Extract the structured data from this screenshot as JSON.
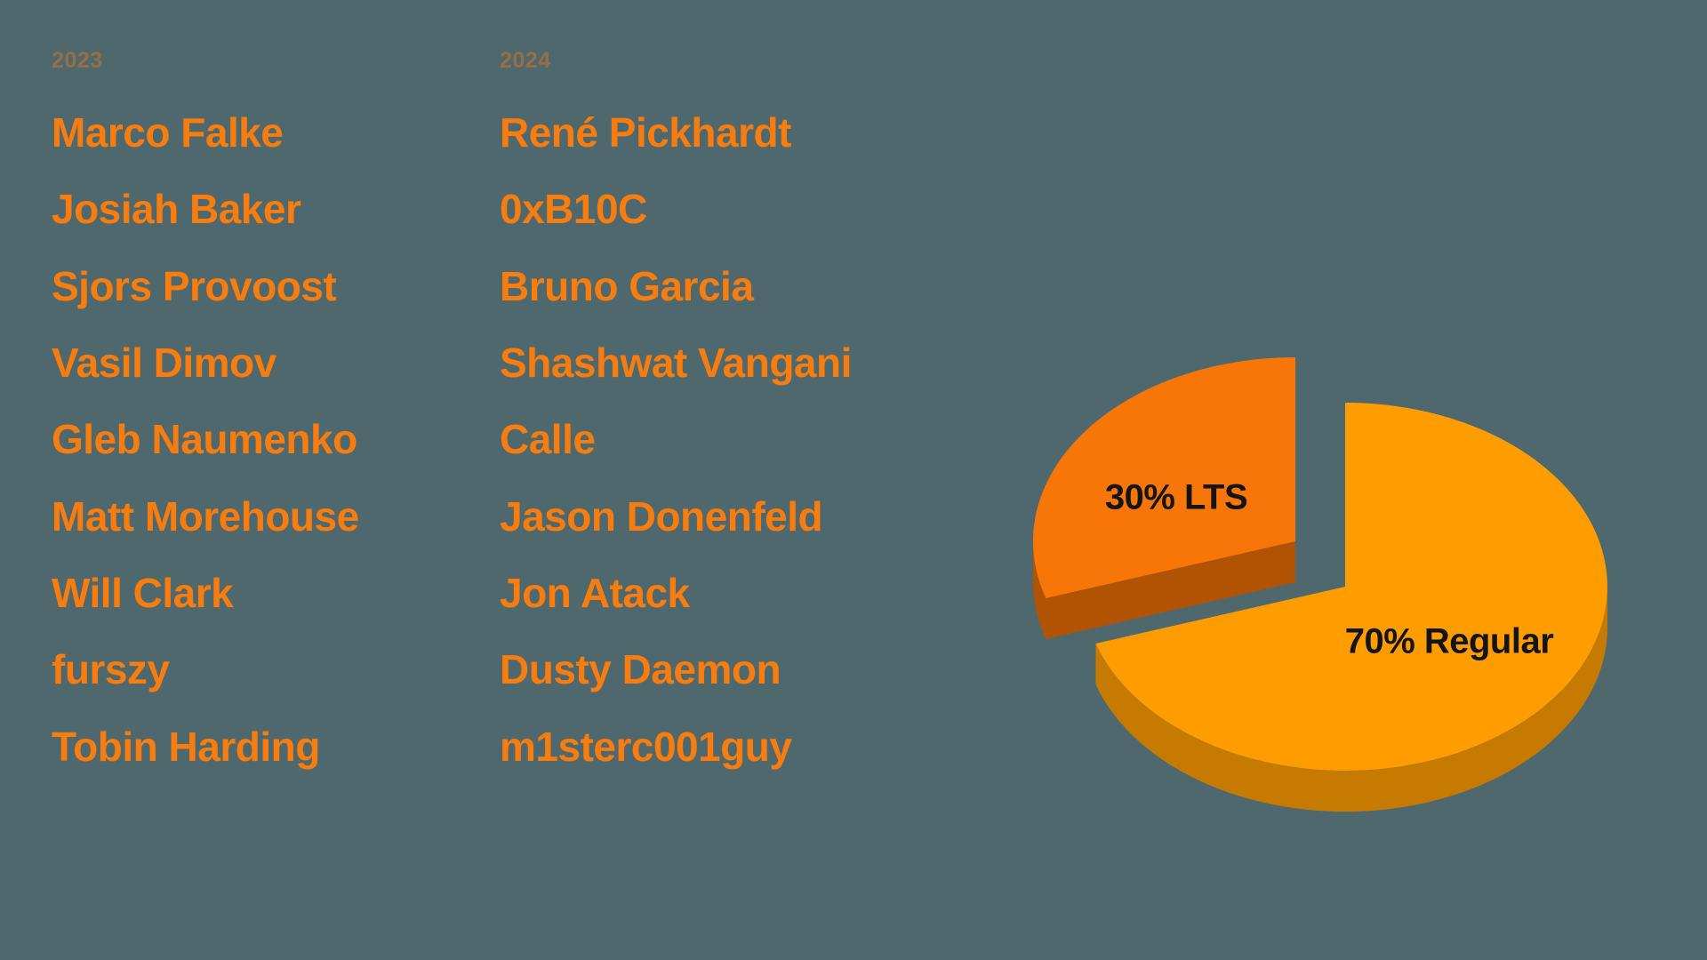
{
  "background_color": "#4f686d",
  "text_color": "#f87d0e",
  "columns": [
    {
      "year": "2023",
      "names": [
        "Marco Falke",
        "Josiah Baker",
        "Sjors Provoost",
        "Vasil Dimov",
        "Gleb Naumenko",
        "Matt Morehouse",
        "Will Clark",
        "furszy",
        "Tobin Harding"
      ]
    },
    {
      "year": "2024",
      "names": [
        "René Pickhardt",
        "0xB10C",
        "Bruno Garcia",
        "Shashwat Vangani",
        "Calle",
        "Jason Donenfeld",
        "Jon Atack",
        "Dusty Daemon",
        "m1sterc001guy"
      ]
    }
  ],
  "chart_data": {
    "type": "pie",
    "style": "3d-exploded",
    "title": "",
    "start_angle_deg": -90,
    "direction": "clockwise",
    "legend": false,
    "labels_inside": true,
    "label_color": "#141414",
    "slices": [
      {
        "name": "Regular",
        "value_pct": 70,
        "label": "70% Regular",
        "color_top": "#ff9d00",
        "color_side": "#c67a00",
        "exploded": false
      },
      {
        "name": "LTS",
        "value_pct": 30,
        "label": "30% LTS",
        "color_top": "#f87607",
        "color_side": "#b25304",
        "exploded": true
      }
    ]
  }
}
